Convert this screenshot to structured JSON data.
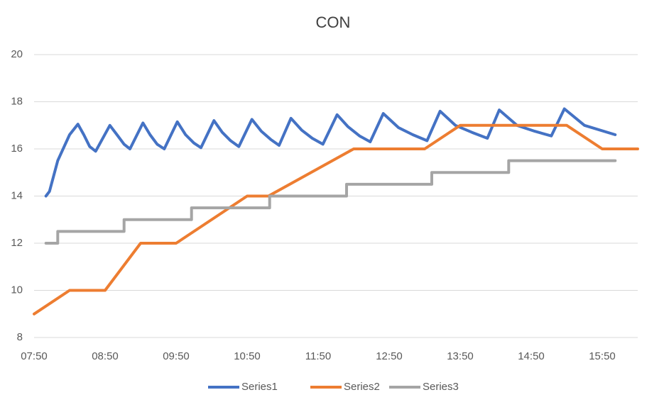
{
  "chart_data": {
    "type": "line",
    "title": "CON",
    "xlim": [
      470,
      980
    ],
    "xticks": [
      {
        "value": 470,
        "label": "07:50"
      },
      {
        "value": 530,
        "label": "08:50"
      },
      {
        "value": 590,
        "label": "09:50"
      },
      {
        "value": 650,
        "label": "10:50"
      },
      {
        "value": 710,
        "label": "11:50"
      },
      {
        "value": 770,
        "label": "12:50"
      },
      {
        "value": 830,
        "label": "13:50"
      },
      {
        "value": 890,
        "label": "14:50"
      },
      {
        "value": 950,
        "label": "15:50"
      }
    ],
    "ylim": [
      8,
      20
    ],
    "yticks": [
      8,
      10,
      12,
      14,
      16,
      18,
      20
    ],
    "grid": true,
    "legend": "bottom",
    "series": [
      {
        "name": "Series1",
        "color": "#4472c4",
        "x": [
          480,
          483,
          490,
          500,
          507,
          512,
          517,
          522,
          534,
          540,
          546,
          551,
          562,
          568,
          574,
          580,
          591,
          598,
          605,
          611,
          622,
          629,
          636,
          643,
          654,
          662,
          670,
          677,
          687,
          696,
          705,
          714,
          726,
          735,
          745,
          754,
          765,
          778,
          790,
          802,
          813,
          826,
          840,
          853,
          863,
          878,
          893,
          907,
          918,
          935,
          961
        ],
        "values": [
          14,
          14.2,
          15.5,
          16.6,
          17.05,
          16.6,
          16.1,
          15.9,
          17.0,
          16.6,
          16.2,
          16.0,
          17.1,
          16.6,
          16.2,
          16.0,
          17.15,
          16.6,
          16.25,
          16.05,
          17.2,
          16.7,
          16.35,
          16.1,
          17.25,
          16.75,
          16.4,
          16.15,
          17.3,
          16.8,
          16.45,
          16.2,
          17.45,
          16.95,
          16.55,
          16.3,
          17.5,
          16.9,
          16.6,
          16.35,
          17.6,
          17.0,
          16.7,
          16.45,
          17.65,
          17.0,
          16.75,
          16.55,
          17.7,
          17.0,
          16.6
        ]
      },
      {
        "name": "Series2",
        "color": "#ed7d31",
        "x": [
          470,
          500,
          530,
          560,
          590,
          650,
          668,
          740,
          800,
          830,
          920,
          950,
          980
        ],
        "values": [
          9,
          10,
          10,
          12,
          12,
          14,
          14,
          16,
          16,
          17,
          17,
          16,
          16
        ]
      },
      {
        "name": "Series3",
        "color": "#a5a5a5",
        "x": [
          480,
          490,
          490,
          546,
          546,
          603,
          603,
          669,
          669,
          734,
          734,
          806,
          806,
          871,
          871,
          961
        ],
        "values": [
          12,
          12,
          12.5,
          12.5,
          13,
          13,
          13.5,
          13.5,
          14,
          14,
          14.5,
          14.5,
          15,
          15,
          15.5,
          15.5
        ]
      }
    ]
  }
}
